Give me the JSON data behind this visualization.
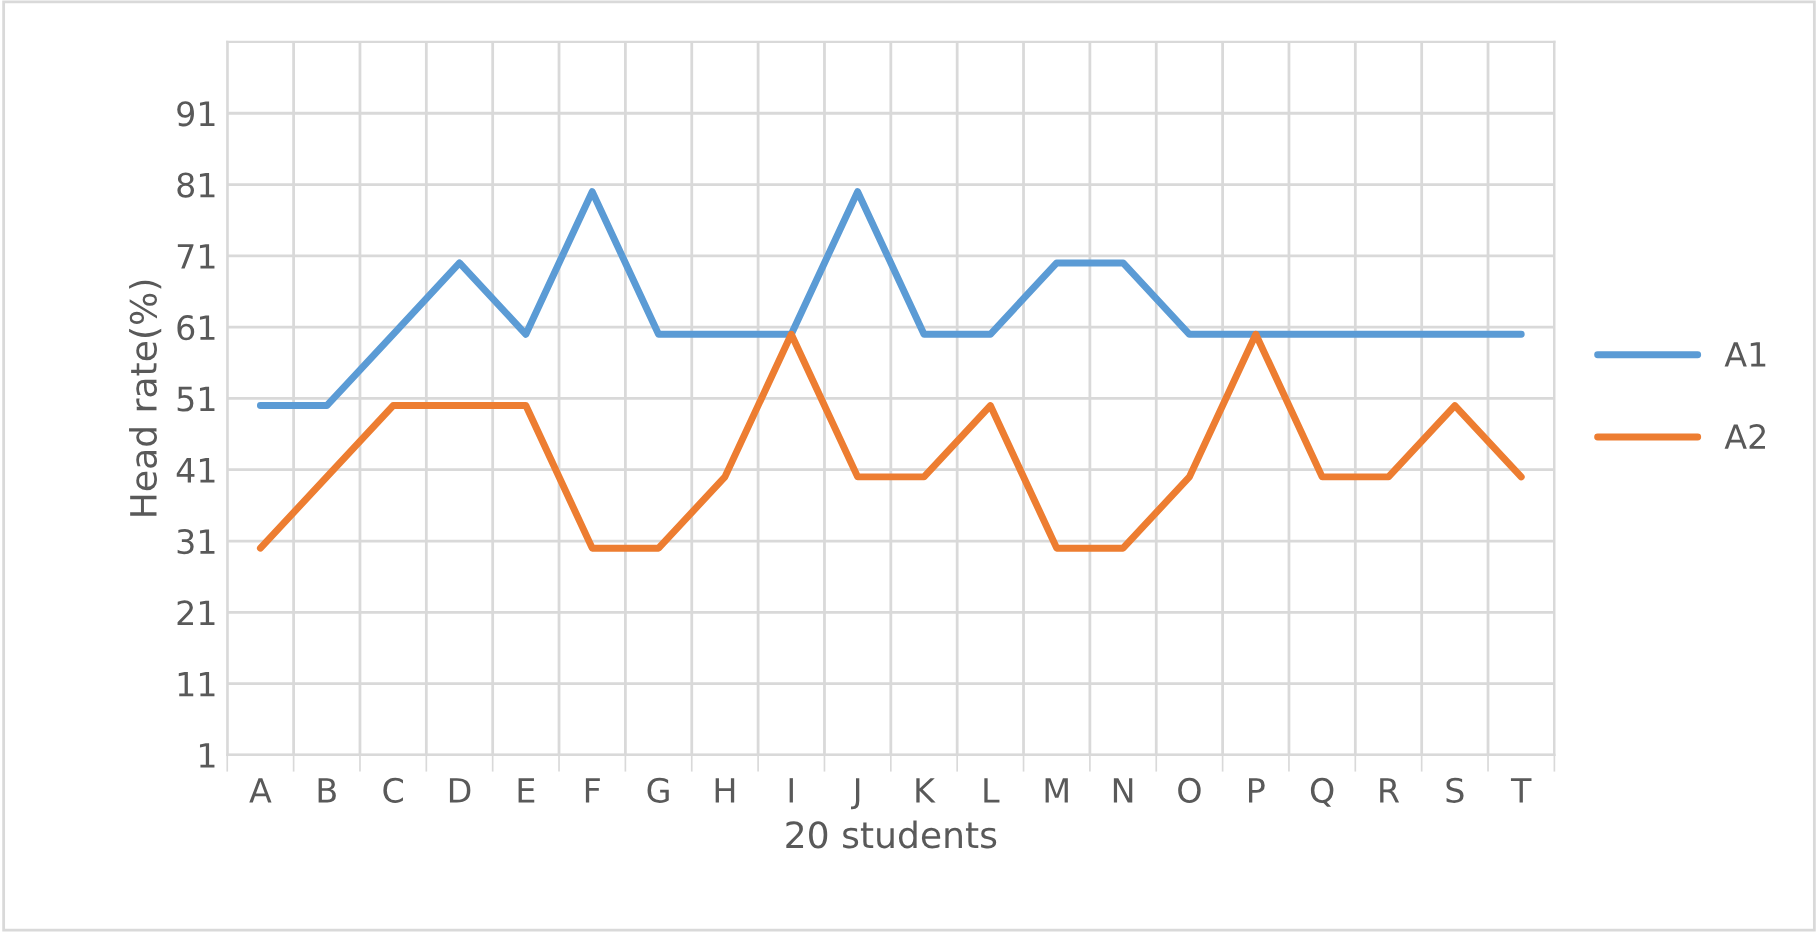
{
  "chart_data": {
    "type": "line",
    "xlabel": "20 students",
    "ylabel": "Head rate(%)",
    "categories": [
      "A",
      "B",
      "C",
      "D",
      "E",
      "F",
      "G",
      "H",
      "I",
      "J",
      "K",
      "L",
      "M",
      "N",
      "O",
      "P",
      "Q",
      "R",
      "S",
      "T"
    ],
    "series": [
      {
        "name": "A1",
        "color": "#5b9bd5",
        "values": [
          50,
          50,
          60,
          70,
          60,
          80,
          60,
          60,
          60,
          80,
          60,
          60,
          70,
          70,
          60,
          60,
          60,
          60,
          60,
          60
        ]
      },
      {
        "name": "A2",
        "color": "#ed7d31",
        "values": [
          30,
          40,
          50,
          50,
          50,
          30,
          30,
          40,
          60,
          40,
          40,
          50,
          30,
          30,
          40,
          60,
          40,
          40,
          50,
          40
        ]
      }
    ],
    "ylim": [
      1,
      101
    ],
    "yticks": [
      1,
      11,
      21,
      31,
      41,
      51,
      61,
      71,
      81,
      91
    ],
    "grid": true,
    "legend": "right",
    "marker": "none",
    "line_style": "solid"
  }
}
